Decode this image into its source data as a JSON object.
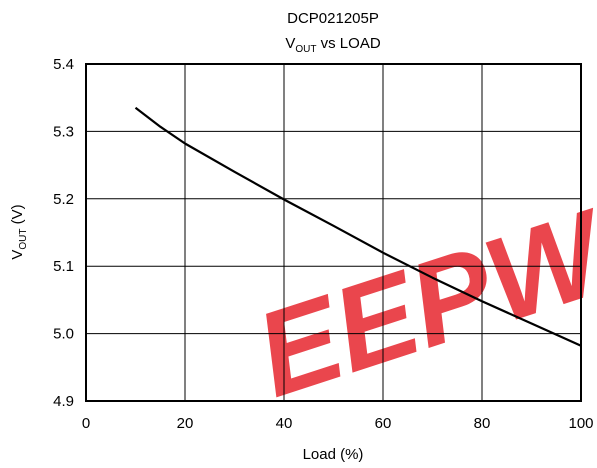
{
  "watermark": {
    "text": "EEPW",
    "color": "#e8323a"
  },
  "chart_data": {
    "type": "line",
    "title": "DCP021205P",
    "subtitle_main": "V",
    "subtitle_sub": "OUT",
    "subtitle_rest": " vs LOAD",
    "xlabel": "Load (%)",
    "ylabel_main": "V",
    "ylabel_sub": "OUT",
    "ylabel_rest": " (V)",
    "xlim": [
      0,
      100
    ],
    "ylim": [
      4.9,
      5.4
    ],
    "x_ticks": [
      0,
      20,
      40,
      60,
      80,
      100
    ],
    "x_tick_labels": [
      "0",
      "20",
      "40",
      "60",
      "80",
      "100"
    ],
    "y_ticks": [
      4.9,
      5.0,
      5.1,
      5.2,
      5.3,
      5.4
    ],
    "y_tick_labels": [
      "4.9",
      "5.0",
      "5.1",
      "5.2",
      "5.3",
      "5.4"
    ],
    "grid": true,
    "series": [
      {
        "line_color": "#000000",
        "x": [
          10,
          15,
          20,
          30,
          40,
          50,
          60,
          70,
          80,
          90,
          100
        ],
        "y": [
          5.335,
          5.307,
          5.282,
          5.24,
          5.199,
          5.16,
          5.12,
          5.083,
          5.048,
          5.015,
          4.982
        ]
      }
    ]
  }
}
